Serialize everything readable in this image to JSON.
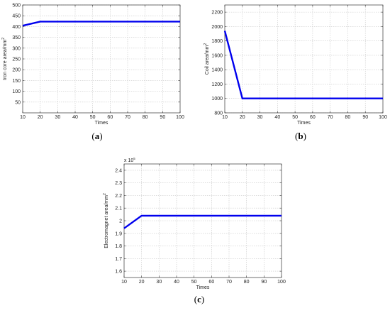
{
  "figure": {
    "series_color": "#0000ee"
  },
  "chart_data": [
    {
      "id": "a",
      "type": "line",
      "caption_letter": "a",
      "xlabel": "Times",
      "ylabel_main": "Iron core area/mm",
      "ylabel_sup": "2",
      "exponent_label": "",
      "grid": true,
      "xlim": [
        10,
        100
      ],
      "ylim": [
        0,
        500
      ],
      "xticks": [
        10,
        20,
        30,
        40,
        50,
        60,
        70,
        80,
        90,
        100
      ],
      "yticks": [
        50,
        100,
        150,
        200,
        250,
        300,
        350,
        400,
        450,
        500
      ],
      "ytick_labels": [
        "50",
        "100",
        "150",
        "200",
        "250",
        "300",
        "350",
        "400",
        "450",
        "500"
      ],
      "series": [
        {
          "x": [
            10,
            20,
            30,
            40,
            50,
            60,
            70,
            80,
            90,
            100
          ],
          "y": [
            404,
            423,
            423,
            423,
            423,
            423,
            423,
            423,
            423,
            423
          ]
        }
      ]
    },
    {
      "id": "b",
      "type": "line",
      "caption_letter": "b",
      "xlabel": "Times",
      "ylabel_main": "Coil area/mm",
      "ylabel_sup": "2",
      "exponent_label": "",
      "grid": true,
      "xlim": [
        10,
        100
      ],
      "ylim": [
        800,
        2300
      ],
      "xticks": [
        10,
        20,
        30,
        40,
        50,
        60,
        70,
        80,
        90,
        100
      ],
      "yticks": [
        800,
        1000,
        1200,
        1400,
        1600,
        1800,
        2000,
        2200
      ],
      "ytick_labels": [
        "800",
        "1000",
        "1200",
        "1400",
        "1600",
        "1800",
        "2000",
        "2200"
      ],
      "series": [
        {
          "x": [
            10,
            20,
            30,
            40,
            50,
            60,
            70,
            80,
            90,
            100
          ],
          "y": [
            1940,
            1000,
            1000,
            1000,
            1000,
            1000,
            1000,
            1000,
            1000,
            1000
          ]
        }
      ]
    },
    {
      "id": "c",
      "type": "line",
      "caption_letter": "c",
      "xlabel": "Times",
      "ylabel_main": "Electromagnet area/mm",
      "ylabel_sup": "2",
      "exponent_label": "x 10",
      "exponent_sup": "5",
      "grid": true,
      "xlim": [
        10,
        100
      ],
      "ylim": [
        1.55,
        2.45
      ],
      "xticks": [
        10,
        20,
        30,
        40,
        50,
        60,
        70,
        80,
        90,
        100
      ],
      "yticks": [
        1.6,
        1.7,
        1.8,
        1.9,
        2.0,
        2.1,
        2.2,
        2.3,
        2.4
      ],
      "ytick_labels": [
        "1.6",
        "1.7",
        "1.8",
        "1.9",
        "2",
        "2.1",
        "2.2",
        "2.3",
        "2.4"
      ],
      "series": [
        {
          "x": [
            10,
            20,
            30,
            40,
            50,
            60,
            70,
            80,
            90,
            100
          ],
          "y": [
            1.94,
            2.04,
            2.04,
            2.04,
            2.04,
            2.04,
            2.04,
            2.04,
            2.04,
            2.04
          ]
        }
      ]
    }
  ]
}
